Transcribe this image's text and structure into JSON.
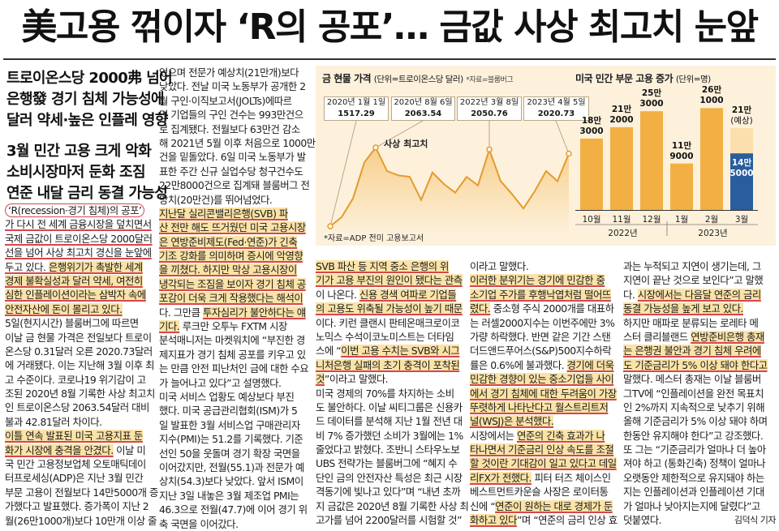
{
  "headline": "美고용 꺾이자 ‘R의 공포’… 금값 사상 최고치 눈앞",
  "subheads": [
    "트로이온스당 2000弗 넘어",
    "은행發 경기 침체 가능성에",
    "달러 약세·높은 인플레 영향",
    "3월 민간 고용 크게 악화",
    "소비시장마저 둔화 조짐",
    "연준 내달 금리 동결 가능성"
  ],
  "columns": [
    [
      [
        {
          "t": "‘R(recession·경기 침체)의 공포’",
          "s": "circle"
        }
      ],
      [
        {
          "t": "가 다시 전 세계 금융시장을 덮치면서",
          "s": "ul"
        }
      ],
      [
        {
          "t": "국제 금값이 트로이온스당 2000달러",
          "s": "ul"
        }
      ],
      [
        {
          "t": "선을 넘어 사상 최고치 경신을 눈앞에",
          "s": "ul"
        }
      ],
      [
        {
          "t": "두고 있다. ",
          "s": "ul"
        },
        {
          "t": "은행위기가 촉발한 세계",
          "s": "hlul"
        }
      ],
      [
        {
          "t": "경제 불확실성과 달러 약세, 여전히",
          "s": "hlul"
        }
      ],
      [
        {
          "t": "심한 인플레이션이라는 삼박자 속에",
          "s": "hlul"
        }
      ],
      [
        {
          "t": "안전자산에 돈이 몰리고 있다.",
          "s": "hlul"
        }
      ],
      [
        {
          "t": "5일(현지시간) 블룸버그에 따르면"
        }
      ],
      [
        {
          "t": "이날 금 현물 가격은 전일보다 트로이"
        }
      ],
      [
        {
          "t": "온스당 0.31달러 오른 2020.73달러"
        }
      ],
      [
        {
          "t": "에 거래됐다. 이는 지난해 3월 이후 최"
        }
      ],
      [
        {
          "t": "고 수준이다. 코로나19 위기감이 고"
        }
      ],
      [
        {
          "t": "조된 2020년 8월 기록한 사상 최고치"
        }
      ],
      [
        {
          "t": "인 트로이온스당 2063.54달러 대비"
        }
      ],
      [
        {
          "t": "불과 42.81달러 차이다."
        }
      ],
      [
        {
          "t": "이틀 연속 발표된 미국 고용지표 둔",
          "s": "hlul"
        }
      ],
      [
        {
          "t": "화가 시장에 충격을 안겼다.",
          "s": "hlul"
        },
        {
          "t": " 이날 미"
        }
      ],
      [
        {
          "t": "국 민간 고용정보업체 오토매틱데이"
        }
      ],
      [
        {
          "t": "터프로세싱(ADP)은 지난 3월 민간"
        }
      ],
      [
        {
          "t": "부문 고용이 전월보다 14만5000개 증"
        }
      ],
      [
        {
          "t": "가했다고 발표했다. 증가폭이 지난 2"
        }
      ],
      [
        {
          "t": "월(26만1000개)보다 10만개 이상 줄"
        }
      ]
    ],
    [
      [
        {
          "t": "었으며 전문가 예상치(21만개)보다"
        }
      ],
      [
        {
          "t": "낮았다. 전날 미국 노동부가 공개한 2"
        }
      ],
      [
        {
          "t": "월 구인·이직보고서(JOLTs)에따르"
        }
      ],
      [
        {
          "t": "면 기업들의 구인 건수는 993만건으"
        }
      ],
      [
        {
          "t": "로 집계됐다. 전월보다 63만건 감소"
        }
      ],
      [
        {
          "t": "해 2021년 5월 이후 처음으로 1000만"
        }
      ],
      [
        {
          "t": "건을 밑돌았다. 6일 미국 노동부가 발"
        }
      ],
      [
        {
          "t": "표한 주간 신규 실업수당 청구건수도"
        }
      ],
      [
        {
          "t": "22만8000건으로 집계돼 블룸버그 전"
        }
      ],
      [
        {
          "t": "망치(20만건)를 뛰어넘었다."
        }
      ],
      [
        {
          "t": "지난달 실리콘밸리은행(SVB) 파",
          "s": "hlul"
        }
      ],
      [
        {
          "t": "산 전만 해도 뜨거웠던 미국 고용시장",
          "s": "hlul"
        }
      ],
      [
        {
          "t": "은 연방준비제도(Fed·연준)가 긴축",
          "s": "hlul"
        }
      ],
      [
        {
          "t": "기조 강화를 의미하며 증시에 악영향",
          "s": "hlul"
        }
      ],
      [
        {
          "t": "을 끼쳤다. 하지만 막상 고용시장이",
          "s": "hlul"
        }
      ],
      [
        {
          "t": "냉각되는 조짐을 보이자 경기 침체 공",
          "s": "hlul"
        }
      ],
      [
        {
          "t": "포감이 더욱 크게 작용했다는 해석이",
          "s": "hlul"
        }
      ],
      [
        {
          "t": "다. 그만큼 "
        },
        {
          "t": "투자심리가 불안하다는 얘",
          "s": "hlul"
        }
      ],
      [
        {
          "t": "기다.",
          "s": "hlul"
        },
        {
          "t": " 루크만 오투누 FXTM 시장"
        }
      ],
      [
        {
          "t": "분석매니저는 마켓워치에 “부진한 경"
        }
      ],
      [
        {
          "t": "제지표가 경기 침체 공포를 키우고 있"
        }
      ],
      [
        {
          "t": "는 만큼 안전 피난처인 금에 대한 수요"
        }
      ],
      [
        {
          "t": "가 늘어나고 있다”고 설명했다."
        }
      ],
      [
        {
          "t": "미국 서비스 업황도 예상보다 부진"
        }
      ],
      [
        {
          "t": "했다. 미국 공급관리협회(ISM)가 5"
        }
      ],
      [
        {
          "t": "일 발표한 3월 서비스업 구매관리자"
        }
      ],
      [
        {
          "t": "지수(PMI)는 51.2를 기록했다. 기준"
        }
      ],
      [
        {
          "t": "선인 50을 웃돌며 경기 확장 국면을"
        }
      ],
      [
        {
          "t": "이어갔지만, 전월(55.1)과 전문가 예"
        }
      ],
      [
        {
          "t": "상치(54.3)보다 낮았다. 앞서 ISM이"
        }
      ],
      [
        {
          "t": "지난 3일 내놓은 3월 제조업 PMI는"
        }
      ],
      [
        {
          "t": "46.3으로 전월(47.7)에 이어 경기 위"
        }
      ],
      [
        {
          "t": "축 국면을 이어갔다."
        }
      ]
    ],
    [
      [
        {
          "t": "SVB 파산 등 지역 중소 은행의 위",
          "s": "hlul"
        }
      ],
      [
        {
          "t": "기가 고용 부진의 원인이 됐다는 관측",
          "s": "hlul"
        }
      ],
      [
        {
          "t": "이 나온다. "
        },
        {
          "t": "신용 경색 여파로 기업들",
          "s": "hlul"
        }
      ],
      [
        {
          "t": "의 고용도 위축될 가능성이 높기 때문",
          "s": "hlul"
        }
      ],
      [
        {
          "t": "이다. 키런 클랜시 판테온매크로이코"
        }
      ],
      [
        {
          "t": "노믹스 수석이코노미스트는 더타임"
        }
      ],
      [
        {
          "t": "스에 “"
        },
        {
          "t": "이번 고용 수치는 SVB와 시그",
          "s": "hlul"
        }
      ],
      [
        {
          "t": "니처은행 실패의 초기 충격이 포착된",
          "s": "hlul"
        }
      ],
      [
        {
          "t": "것",
          "s": "hlul"
        },
        {
          "t": "”이라고 말했다."
        }
      ],
      [
        {
          "t": "미국 경제의 70%를 차지하는 소비"
        }
      ],
      [
        {
          "t": "도 불안하다. 이날 씨티그룹은 신용카"
        }
      ],
      [
        {
          "t": "드 데이터를 분석해 지난 1월 전년 대"
        }
      ],
      [
        {
          "t": "비 7% 증가했던 소비가 3월에는 1%"
        }
      ],
      [
        {
          "t": "줄었다고 밝혔다. 조반니 스타우노보"
        }
      ],
      [
        {
          "t": "UBS 전략가는 블룸버그에 “혜지 수"
        }
      ],
      [
        {
          "t": "단인 금의 안전자산 특성은 최근 시장"
        }
      ],
      [
        {
          "t": "격동기에 빛나고 있다”며 “내년 초까"
        }
      ],
      [
        {
          "t": "지 금값은 2020년 8월 기록한 사상 최"
        }
      ],
      [
        {
          "t": "고가를 넘어 2200달러를 시험할 것”"
        }
      ]
    ],
    [
      [
        {
          "t": "이라고 말했다."
        }
      ],
      [
        {
          "t": "이러한 분위기는 경기에 민감한 중",
          "s": "hlul"
        }
      ],
      [
        {
          "t": "소기업 주가를 후행낙엽처럼 떨어뜨",
          "s": "hlul"
        }
      ],
      [
        {
          "t": "렸다.",
          "s": "hlul"
        },
        {
          "t": " 중소형 주식 2000개를 대표하"
        }
      ],
      [
        {
          "t": "는 러셀2000지수는 이번주에만 3%"
        }
      ],
      [
        {
          "t": "가량 하락했다. 반면 같은 기간 스탠"
        }
      ],
      [
        {
          "t": "더드앤드푸어스(S&P)500지수하락"
        }
      ],
      [
        {
          "t": "률은 0.6%에 불과했다. "
        },
        {
          "t": "경기에 더욱",
          "s": "hlul"
        }
      ],
      [
        {
          "t": "민감한 경향이 있는 중소기업들 사이",
          "s": "hlul"
        }
      ],
      [
        {
          "t": "에서 경기 침체에 대한 두려움이 가장",
          "s": "hlul"
        }
      ],
      [
        {
          "t": "뚜렷하게 나타난다고 월스트리트저",
          "s": "hlul"
        }
      ],
      [
        {
          "t": "널(WSJ)은 분석했다.",
          "s": "hlul"
        }
      ],
      [
        {
          "t": "시장에서는 "
        },
        {
          "t": "연준의 긴축 효과가 나",
          "s": "hlul"
        }
      ],
      [
        {
          "t": "타나면서 기준금리 인상 속도를 조절",
          "s": "hlul"
        }
      ],
      [
        {
          "t": "할 것이란 기대감이 일고 있다고 데일",
          "s": "hlul"
        }
      ],
      [
        {
          "t": "리FX가 전했다.",
          "s": "hlul"
        },
        {
          "t": " 피터 터즈 체이스인"
        }
      ],
      [
        {
          "t": "베스트먼트카운슬 사장은 로이터통"
        }
      ],
      [
        {
          "t": "신에 “"
        },
        {
          "t": "연준이 원하는 대로 경제가 둔",
          "s": "hlul"
        }
      ],
      [
        {
          "t": "화하고 있다",
          "s": "hlul"
        },
        {
          "t": "”며 “연준의 금리 인상 효"
        }
      ]
    ],
    [
      [
        {
          "t": "과는 누적되고 지연이 생기는데, 그"
        }
      ],
      [
        {
          "t": "지연이 끝난 것으로 보인다”고 말했"
        }
      ],
      [
        {
          "t": "다. "
        },
        {
          "t": "시장에서는 다음달 연준의 금리",
          "s": "hlul"
        }
      ],
      [
        {
          "t": "동결 가능성을 높게 보고 있다.",
          "s": "hlul"
        }
      ],
      [
        {
          "t": "하지만 매파로 분류되는 로레타 메"
        }
      ],
      [
        {
          "t": "스터 클리블랜드 "
        },
        {
          "t": "연방준비은행 총재",
          "s": "hlul"
        }
      ],
      [
        {
          "t": "는 은행권 불안과 경기 침체 우려에",
          "s": "hlul"
        }
      ],
      [
        {
          "t": "도 기준금리가 5% 이상 돼야 한다고",
          "s": "hlul"
        }
      ],
      [
        {
          "t": "말했다. 메스터 총재는 이날 블룸버"
        }
      ],
      [
        {
          "t": "그TV에 “인플레이션을 완전 목표치"
        }
      ],
      [
        {
          "t": "인 2%까지 지속적으로 낮추기 위해"
        }
      ],
      [
        {
          "t": "올해 기준금리가 5% 이상 돼야 하며"
        }
      ],
      [
        {
          "t": "한동안 유지해야 한다”고 강조했다."
        }
      ],
      [
        {
          "t": "또 그는 “기준금리가 얼마나 더 높아"
        }
      ],
      [
        {
          "t": "져야 하고 (통화긴축) 정책이 얼마나"
        }
      ],
      [
        {
          "t": "오랫동안 제한적으로 유지돼야 하는"
        }
      ],
      [
        {
          "t": "지는 인플레이션과 인플레이션 기대"
        }
      ],
      [
        {
          "t": "가 얼마나 낮아지는지에 달렸다”고"
        }
      ],
      [
        {
          "t": "덧붙였다."
        }
      ]
    ]
  ],
  "byline": "김덕식 기자",
  "graphic": {
    "gold": {
      "title": "금 현물 가격",
      "unit": "(단위=트로이온스당 달러)",
      "source": "*자료=블룸버그",
      "peak_label": "사상 최고치",
      "callouts": [
        {
          "date": "2020년 1월 1일",
          "value": "1517.29"
        },
        {
          "date": "2020년 8월 6일",
          "value": "2063.54"
        },
        {
          "date": "2022년 3월 8일",
          "value": "2050.76"
        },
        {
          "date": "2023년 4월 5일",
          "value": "2020.73"
        }
      ],
      "colors": {
        "line": "#e49b2c",
        "fill_top": "#f7cf8c",
        "fill_bottom": "#fdf1dc"
      }
    },
    "jobs": {
      "title": "미국 민간 부문 고용 증가",
      "unit": "(단위=명)",
      "source": "*자료=ADP 전미 고용보고서",
      "years": [
        "2022년",
        "2023년"
      ],
      "colors": {
        "bar": "#f2b044",
        "forecast": "#fbe0ad",
        "actual_mar": "#2a5d9e"
      }
    }
  },
  "chart_data": [
    {
      "type": "line",
      "title": "금 현물 가격",
      "ylabel": "(단위=트로이온스당 달러)",
      "annotations": [
        {
          "x": "2020-01-01",
          "y": 1517.29
        },
        {
          "x": "2020-08-06",
          "y": 2063.54,
          "label": "사상 최고치"
        },
        {
          "x": "2022-03-08",
          "y": 2050.76
        },
        {
          "x": "2023-04-05",
          "y": 2020.73
        }
      ],
      "x": [
        "2020-01",
        "2020-03",
        "2020-05",
        "2020-07",
        "2020-08",
        "2020-09",
        "2020-11",
        "2021-01",
        "2021-03",
        "2021-05",
        "2021-07",
        "2021-09",
        "2021-11",
        "2022-01",
        "2022-03",
        "2022-05",
        "2022-07",
        "2022-09",
        "2022-11",
        "2023-01",
        "2023-02",
        "2023-04"
      ],
      "series": [
        {
          "values": [
            1517,
            1580,
            1710,
            1960,
            2063,
            1900,
            1870,
            1860,
            1700,
            1890,
            1810,
            1750,
            1860,
            1800,
            2050,
            1830,
            1740,
            1640,
            1760,
            1900,
            1830,
            2021
          ]
        }
      ]
    },
    {
      "type": "bar",
      "title": "미국 민간 부문 고용 증가",
      "ylabel": "(단위=명)",
      "categories": [
        "10월",
        "11월",
        "12월",
        "1월",
        "2월",
        "3월"
      ],
      "series": [
        {
          "name": "",
          "values": [
            183000,
            212000,
            253000,
            119000,
            261000,
            145000
          ]
        },
        {
          "name": "예상",
          "values": [
            null,
            null,
            null,
            null,
            null,
            210000
          ]
        }
      ],
      "bar_labels": [
        [
          "18만",
          "3000"
        ],
        [
          "21만",
          "2000"
        ],
        [
          "25만",
          "3000"
        ],
        [
          "11만",
          "9000"
        ],
        [
          "26만",
          "1000"
        ],
        [
          "14만",
          "5000"
        ]
      ],
      "forecast_label": [
        "21만",
        "(예상)"
      ]
    }
  ]
}
